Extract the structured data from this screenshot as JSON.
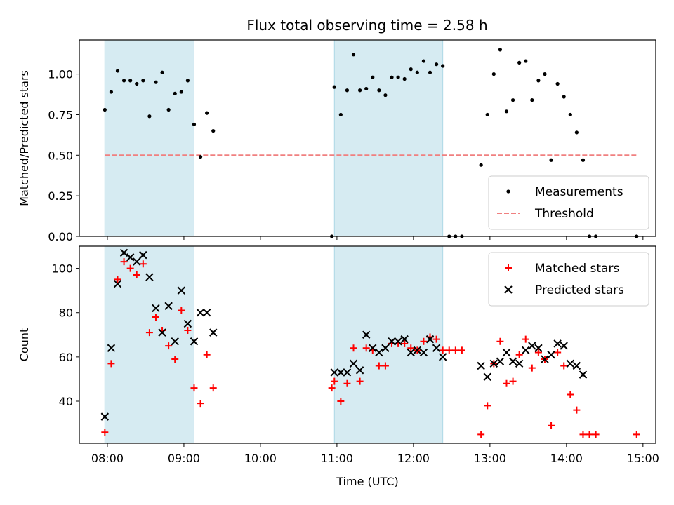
{
  "chart_data": [
    {
      "type": "scatter",
      "title": "Flux total observing time = 2.58 h",
      "xlabel": "",
      "ylabel": "Matched/Predicted stars",
      "xlim": [
        "07:38",
        "15:10"
      ],
      "ylim": [
        0,
        1.21
      ],
      "yticks": [
        0,
        0.25,
        0.5,
        0.75,
        1.0
      ],
      "ytick_labels": [
        "0.00",
        "0.25",
        "0.50",
        "0.75",
        "1.00"
      ],
      "grid": false,
      "legend_position": "lower-right",
      "shaded_intervals": [
        [
          "07:58",
          "09:08"
        ],
        [
          "10:58",
          "12:23"
        ]
      ],
      "shade_color": "#add8e6",
      "threshold": {
        "name": "Threshold",
        "value": 0.5,
        "x_range": [
          "07:58",
          "14:55"
        ],
        "color": "#f08080"
      },
      "series": [
        {
          "name": "Measurements",
          "marker": "dot",
          "color": "#000000",
          "points": [
            [
              "07:58",
              0.78
            ],
            [
              "08:03",
              0.89
            ],
            [
              "08:08",
              1.02
            ],
            [
              "08:13",
              0.96
            ],
            [
              "08:18",
              0.96
            ],
            [
              "08:23",
              0.94
            ],
            [
              "08:28",
              0.96
            ],
            [
              "08:33",
              0.74
            ],
            [
              "08:38",
              0.95
            ],
            [
              "08:43",
              1.01
            ],
            [
              "08:48",
              0.78
            ],
            [
              "08:53",
              0.88
            ],
            [
              "08:58",
              0.89
            ],
            [
              "09:03",
              0.96
            ],
            [
              "09:08",
              0.69
            ],
            [
              "09:13",
              0.49
            ],
            [
              "09:18",
              0.76
            ],
            [
              "09:23",
              0.65
            ],
            [
              "10:56",
              0.0
            ],
            [
              "10:58",
              0.92
            ],
            [
              "11:03",
              0.75
            ],
            [
              "11:08",
              0.9
            ],
            [
              "11:13",
              1.12
            ],
            [
              "11:18",
              0.9
            ],
            [
              "11:23",
              0.91
            ],
            [
              "11:28",
              0.98
            ],
            [
              "11:33",
              0.9
            ],
            [
              "11:38",
              0.87
            ],
            [
              "11:43",
              0.98
            ],
            [
              "11:48",
              0.98
            ],
            [
              "11:53",
              0.97
            ],
            [
              "11:58",
              1.03
            ],
            [
              "12:03",
              1.01
            ],
            [
              "12:08",
              1.08
            ],
            [
              "12:13",
              1.01
            ],
            [
              "12:18",
              1.06
            ],
            [
              "12:23",
              1.05
            ],
            [
              "12:28",
              0.0
            ],
            [
              "12:33",
              0.0
            ],
            [
              "12:38",
              0.0
            ],
            [
              "12:53",
              0.44
            ],
            [
              "12:58",
              0.75
            ],
            [
              "13:03",
              1.0
            ],
            [
              "13:08",
              1.15
            ],
            [
              "13:13",
              0.77
            ],
            [
              "13:18",
              0.84
            ],
            [
              "13:23",
              1.07
            ],
            [
              "13:28",
              1.08
            ],
            [
              "13:33",
              0.84
            ],
            [
              "13:38",
              0.96
            ],
            [
              "13:43",
              1.0
            ],
            [
              "13:48",
              0.47
            ],
            [
              "13:53",
              0.94
            ],
            [
              "13:58",
              0.86
            ],
            [
              "14:03",
              0.75
            ],
            [
              "14:08",
              0.64
            ],
            [
              "14:13",
              0.47
            ],
            [
              "14:18",
              0.0
            ],
            [
              "14:23",
              0.0
            ],
            [
              "14:55",
              0.0
            ]
          ]
        }
      ]
    },
    {
      "type": "scatter",
      "title": "",
      "xlabel": "Time (UTC)",
      "ylabel": "Count",
      "xlim": [
        "07:38",
        "15:10"
      ],
      "ylim": [
        21,
        110
      ],
      "xticks": [
        "08:00",
        "09:00",
        "10:00",
        "11:00",
        "12:00",
        "13:00",
        "14:00",
        "15:00"
      ],
      "yticks": [
        40,
        60,
        80,
        100
      ],
      "ytick_labels": [
        "40",
        "60",
        "80",
        "100"
      ],
      "grid": false,
      "legend_position": "upper-right",
      "shaded_intervals": [
        [
          "07:58",
          "09:08"
        ],
        [
          "10:58",
          "12:23"
        ]
      ],
      "shade_color": "#add8e6",
      "series": [
        {
          "name": "Matched stars",
          "marker": "plus",
          "color": "#ff0000",
          "points": [
            [
              "07:58",
              26
            ],
            [
              "08:03",
              57
            ],
            [
              "08:08",
              95
            ],
            [
              "08:13",
              103
            ],
            [
              "08:18",
              100
            ],
            [
              "08:23",
              97
            ],
            [
              "08:28",
              102
            ],
            [
              "08:33",
              71
            ],
            [
              "08:38",
              78
            ],
            [
              "08:43",
              72
            ],
            [
              "08:48",
              65
            ],
            [
              "08:53",
              59
            ],
            [
              "08:58",
              81
            ],
            [
              "09:03",
              72
            ],
            [
              "09:08",
              46
            ],
            [
              "09:13",
              39
            ],
            [
              "09:18",
              61
            ],
            [
              "09:23",
              46
            ],
            [
              "10:56",
              46
            ],
            [
              "10:58",
              49
            ],
            [
              "11:03",
              40
            ],
            [
              "11:08",
              48
            ],
            [
              "11:13",
              64
            ],
            [
              "11:18",
              49
            ],
            [
              "11:23",
              64
            ],
            [
              "11:28",
              63
            ],
            [
              "11:33",
              56
            ],
            [
              "11:38",
              56
            ],
            [
              "11:43",
              66
            ],
            [
              "11:48",
              66
            ],
            [
              "11:53",
              66
            ],
            [
              "11:58",
              64
            ],
            [
              "12:03",
              63
            ],
            [
              "12:08",
              67
            ],
            [
              "12:13",
              69
            ],
            [
              "12:18",
              68
            ],
            [
              "12:23",
              63
            ],
            [
              "12:28",
              63
            ],
            [
              "12:33",
              63
            ],
            [
              "12:38",
              63
            ],
            [
              "12:53",
              25
            ],
            [
              "12:58",
              38
            ],
            [
              "13:03",
              57
            ],
            [
              "13:08",
              67
            ],
            [
              "13:13",
              48
            ],
            [
              "13:18",
              49
            ],
            [
              "13:23",
              61
            ],
            [
              "13:28",
              68
            ],
            [
              "13:33",
              55
            ],
            [
              "13:38",
              62
            ],
            [
              "13:43",
              59
            ],
            [
              "13:48",
              29
            ],
            [
              "13:53",
              62
            ],
            [
              "13:58",
              56
            ],
            [
              "14:03",
              43
            ],
            [
              "14:08",
              36
            ],
            [
              "14:13",
              25
            ],
            [
              "14:18",
              25
            ],
            [
              "14:23",
              25
            ],
            [
              "14:55",
              25
            ]
          ]
        },
        {
          "name": "Predicted stars",
          "marker": "x",
          "color": "#000000",
          "points": [
            [
              "07:58",
              33
            ],
            [
              "08:03",
              64
            ],
            [
              "08:08",
              93
            ],
            [
              "08:13",
              107
            ],
            [
              "08:18",
              105
            ],
            [
              "08:23",
              103
            ],
            [
              "08:28",
              106
            ],
            [
              "08:33",
              96
            ],
            [
              "08:38",
              82
            ],
            [
              "08:43",
              71
            ],
            [
              "08:48",
              83
            ],
            [
              "08:53",
              67
            ],
            [
              "08:58",
              90
            ],
            [
              "09:03",
              75
            ],
            [
              "09:08",
              67
            ],
            [
              "09:13",
              80
            ],
            [
              "09:18",
              80
            ],
            [
              "09:23",
              71
            ],
            [
              "10:58",
              53
            ],
            [
              "11:03",
              53
            ],
            [
              "11:08",
              53
            ],
            [
              "11:13",
              57
            ],
            [
              "11:18",
              54
            ],
            [
              "11:23",
              70
            ],
            [
              "11:28",
              64
            ],
            [
              "11:33",
              62
            ],
            [
              "11:38",
              64
            ],
            [
              "11:43",
              67
            ],
            [
              "11:48",
              67
            ],
            [
              "11:53",
              68
            ],
            [
              "11:58",
              62
            ],
            [
              "12:03",
              63
            ],
            [
              "12:08",
              62
            ],
            [
              "12:13",
              68
            ],
            [
              "12:18",
              64
            ],
            [
              "12:23",
              60
            ],
            [
              "12:53",
              56
            ],
            [
              "12:58",
              51
            ],
            [
              "13:03",
              57
            ],
            [
              "13:08",
              58
            ],
            [
              "13:13",
              62
            ],
            [
              "13:18",
              58
            ],
            [
              "13:23",
              57
            ],
            [
              "13:28",
              63
            ],
            [
              "13:33",
              65
            ],
            [
              "13:38",
              64
            ],
            [
              "13:43",
              59
            ],
            [
              "13:48",
              61
            ],
            [
              "13:53",
              66
            ],
            [
              "13:58",
              65
            ],
            [
              "14:03",
              57
            ],
            [
              "14:08",
              56
            ],
            [
              "14:13",
              52
            ]
          ]
        }
      ]
    }
  ]
}
